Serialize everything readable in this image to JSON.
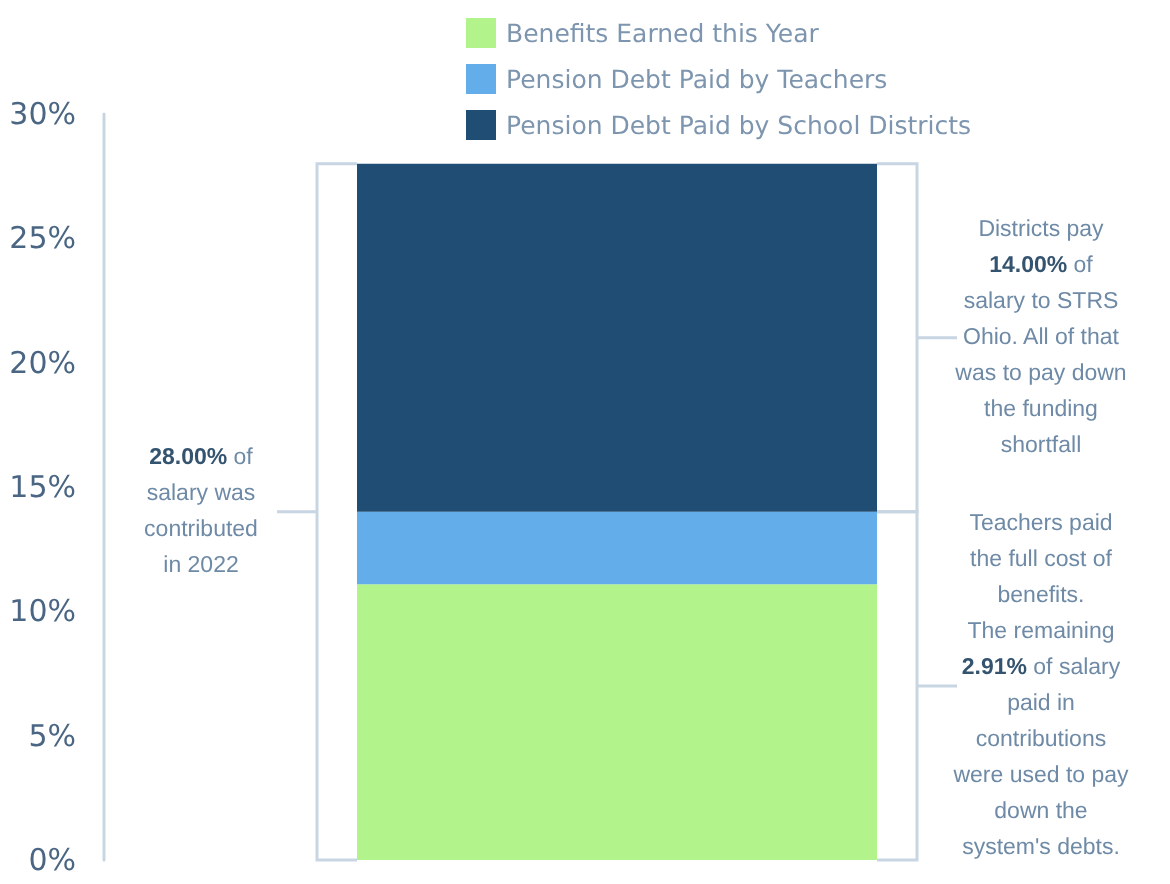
{
  "chart_data": {
    "type": "bar",
    "stacked": true,
    "categories": [
      null
    ],
    "series": [
      {
        "name": "Benefits Earned this Year",
        "color": "#b2f38c",
        "values": [
          11.09
        ]
      },
      {
        "name": "Pension Debt Paid by Teachers",
        "color": "#63aeea",
        "values": [
          2.91
        ]
      },
      {
        "name": "Pension Debt Paid by School Districts",
        "color": "#1f4d73",
        "values": [
          14.0
        ]
      }
    ],
    "ylim": [
      0,
      30
    ],
    "yticks": [
      {
        "value": 0,
        "label": "0%"
      },
      {
        "value": 5,
        "label": "5%"
      },
      {
        "value": 10,
        "label": "10%"
      },
      {
        "value": 15,
        "label": "15%"
      },
      {
        "value": 20,
        "label": "20%"
      },
      {
        "value": 25,
        "label": "25%"
      },
      {
        "value": 30,
        "label": "30%"
      }
    ],
    "tick_labels": "y",
    "grid": false,
    "legend": "top",
    "annotations": [
      "28.00% of\nsalary was\ncontributed\nin 2022",
      "Districts pay\n14.00% of\nsalary to STRS\nOhio. All of that\nwas to pay down\nthe funding\nshortfall",
      "Teachers paid\nthe full cost of\nbenefits.\nThe remaining\n2.91% of salary\npaid in\ncontributions\nwere used to pay\ndown the\nsystem's debts."
    ]
  }
}
